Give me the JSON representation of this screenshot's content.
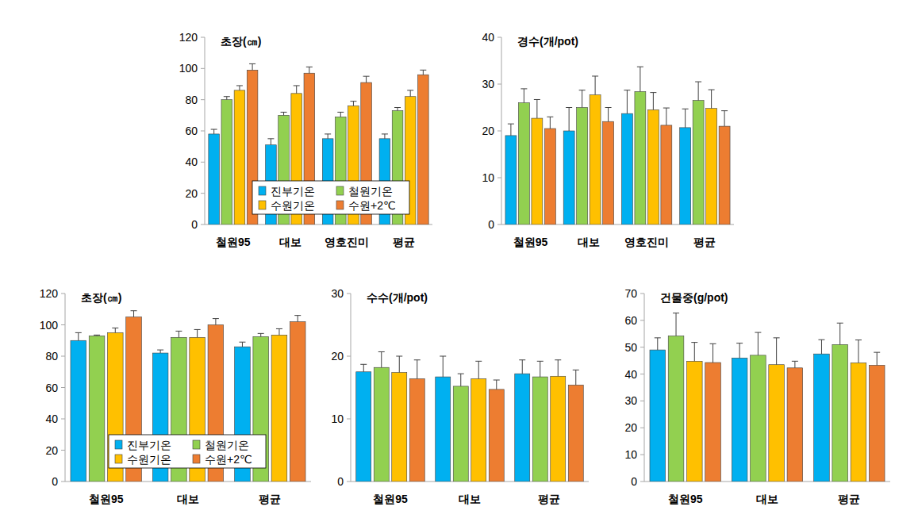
{
  "chart_data": [
    {
      "type": "bar",
      "title": "초장(㎝)",
      "categories": [
        "철원95",
        "대보",
        "영호진미",
        "평균"
      ],
      "ylim": [
        0,
        120
      ],
      "yticks": [
        0,
        20,
        40,
        60,
        80,
        100,
        120
      ],
      "grid": false,
      "legend": "bottom",
      "series": [
        {
          "name": "진부기온",
          "color": "#00B0F0",
          "values": [
            58,
            51,
            55,
            55
          ],
          "errors": [
            3,
            4,
            3,
            3
          ]
        },
        {
          "name": "철원기온",
          "color": "#92D050",
          "values": [
            80,
            70,
            69,
            73
          ],
          "errors": [
            2,
            2,
            3,
            2
          ]
        },
        {
          "name": "수원기온",
          "color": "#FFC000",
          "values": [
            86,
            84,
            76,
            82
          ],
          "errors": [
            3,
            5,
            3,
            4
          ]
        },
        {
          "name": "수원+2℃",
          "color": "#ED7D31",
          "values": [
            99,
            97,
            91,
            96
          ],
          "errors": [
            4,
            4,
            4,
            3
          ]
        }
      ]
    },
    {
      "type": "bar",
      "title": "경수(개/pot)",
      "categories": [
        "철원95",
        "대보",
        "영호진미",
        "평균"
      ],
      "ylim": [
        0,
        40
      ],
      "yticks": [
        0,
        10,
        20,
        30,
        40
      ],
      "grid": false,
      "legend": false,
      "series": [
        {
          "name": "진부기온",
          "color": "#00B0F0",
          "values": [
            19,
            20,
            23.7,
            20.7
          ],
          "errors": [
            2.5,
            5,
            5,
            4
          ]
        },
        {
          "name": "철원기온",
          "color": "#92D050",
          "values": [
            26,
            25,
            28.4,
            26.5
          ],
          "errors": [
            3,
            3.7,
            5.3,
            4
          ]
        },
        {
          "name": "수원기온",
          "color": "#FFC000",
          "values": [
            22.7,
            27.7,
            24.5,
            24.8
          ],
          "errors": [
            4,
            4,
            3.7,
            4
          ]
        },
        {
          "name": "수원+2℃",
          "color": "#ED7D31",
          "values": [
            20.5,
            22,
            21.2,
            21
          ],
          "errors": [
            2.5,
            3,
            3.7,
            3.3
          ]
        }
      ]
    },
    {
      "type": "bar",
      "title": "초장(㎝)",
      "categories": [
        "철원95",
        "대보",
        "평균"
      ],
      "ylim": [
        0,
        120
      ],
      "yticks": [
        0,
        20,
        40,
        60,
        80,
        100,
        120
      ],
      "grid": false,
      "legend": "bottom",
      "series": [
        {
          "name": "진부기온",
          "color": "#00B0F0",
          "values": [
            90,
            82,
            86
          ],
          "errors": [
            5,
            2,
            3
          ]
        },
        {
          "name": "철원기온",
          "color": "#92D050",
          "values": [
            93,
            92,
            92.5
          ],
          "errors": [
            0.5,
            4,
            2
          ]
        },
        {
          "name": "수원기온",
          "color": "#FFC000",
          "values": [
            95,
            92,
            93.5
          ],
          "errors": [
            3,
            5,
            4
          ]
        },
        {
          "name": "수원+2℃",
          "color": "#ED7D31",
          "values": [
            105,
            100,
            102
          ],
          "errors": [
            4,
            4,
            4
          ]
        }
      ]
    },
    {
      "type": "bar",
      "title": "수수(개/pot)",
      "categories": [
        "철원95",
        "대보",
        "평균"
      ],
      "ylim": [
        0,
        30
      ],
      "yticks": [
        0,
        10,
        20,
        30
      ],
      "grid": false,
      "legend": false,
      "series": [
        {
          "name": "진부기온",
          "color": "#00B0F0",
          "values": [
            17.5,
            16.7,
            17.2
          ],
          "errors": [
            1.2,
            3.3,
            2.2
          ]
        },
        {
          "name": "철원기온",
          "color": "#92D050",
          "values": [
            18.2,
            15.2,
            16.7
          ],
          "errors": [
            2.5,
            2,
            2.5
          ]
        },
        {
          "name": "수원기온",
          "color": "#FFC000",
          "values": [
            17.4,
            16.4,
            16.8
          ],
          "errors": [
            2.6,
            2.8,
            2.6
          ]
        },
        {
          "name": "수원+2℃",
          "color": "#ED7D31",
          "values": [
            16.4,
            14.7,
            15.4
          ],
          "errors": [
            3,
            1.5,
            2.4
          ]
        }
      ]
    },
    {
      "type": "bar",
      "title": "건물중(g/pot)",
      "categories": [
        "철원95",
        "대보",
        "평균"
      ],
      "ylim": [
        0,
        70
      ],
      "yticks": [
        0,
        10,
        20,
        30,
        40,
        50,
        60,
        70
      ],
      "grid": false,
      "legend": false,
      "series": [
        {
          "name": "진부기온",
          "color": "#00B0F0",
          "values": [
            49,
            46,
            47.5
          ],
          "errors": [
            4.5,
            5.5,
            5.3
          ]
        },
        {
          "name": "철원기온",
          "color": "#92D050",
          "values": [
            54.2,
            47,
            51
          ],
          "errors": [
            8.5,
            8.5,
            8
          ]
        },
        {
          "name": "수원기온",
          "color": "#FFC000",
          "values": [
            44.8,
            43.5,
            44.2
          ],
          "errors": [
            7,
            10,
            8.5
          ]
        },
        {
          "name": "수원+2℃",
          "color": "#ED7D31",
          "values": [
            44.3,
            42.3,
            43.3
          ],
          "errors": [
            7,
            2.5,
            4.8
          ]
        }
      ]
    }
  ]
}
